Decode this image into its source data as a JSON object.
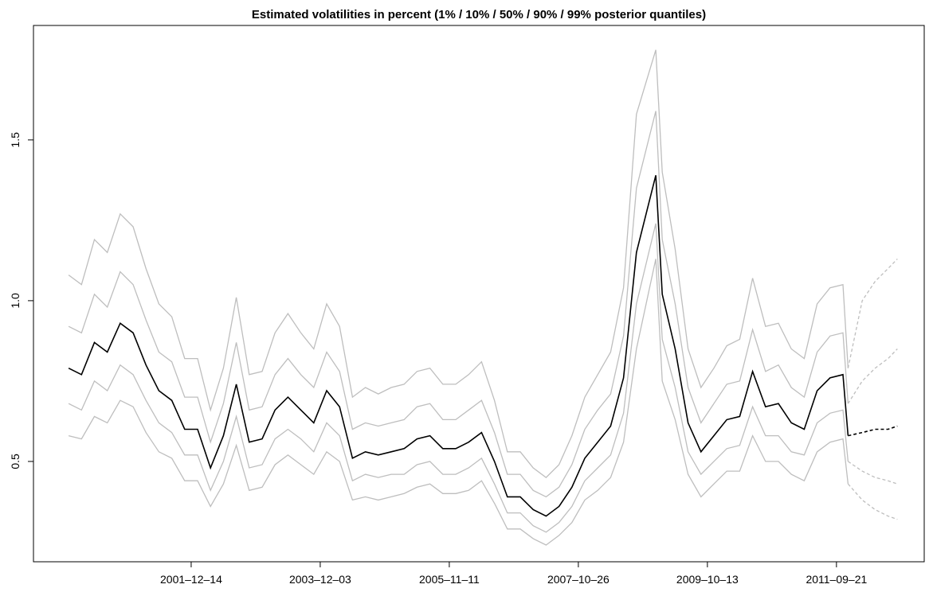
{
  "chart_data": {
    "type": "line",
    "title": "Estimated volatilities in percent (1% / 10% / 50% / 90% / 99% posterior quantiles)",
    "x": [
      25,
      75,
      125,
      175,
      225,
      275,
      325,
      375,
      425,
      475,
      525,
      575,
      625,
      675,
      725,
      775,
      825,
      875,
      925,
      975,
      1025,
      1075,
      1125,
      1175,
      1225,
      1275,
      1325,
      1375,
      1425,
      1475,
      1525,
      1575,
      1625,
      1675,
      1725,
      1775,
      1825,
      1875,
      1925,
      1975,
      2025,
      2075,
      2125,
      2175,
      2225,
      2300,
      2325,
      2375,
      2425,
      2475,
      2525,
      2575,
      2625,
      2675,
      2725,
      2775,
      2825,
      2875,
      2925,
      2975,
      3025,
      3045
    ],
    "xlim": [
      -111,
      3340
    ],
    "xticks": [
      {
        "value": 500,
        "label": "2001–12–14"
      },
      {
        "value": 1000,
        "label": "2003–12–03"
      },
      {
        "value": 1500,
        "label": "2005–11–11"
      },
      {
        "value": 2000,
        "label": "2007–10–26"
      },
      {
        "value": 2500,
        "label": "2009–10–13"
      },
      {
        "value": 3000,
        "label": "2011–09–21"
      }
    ],
    "ylim": [
      0.188,
      1.856
    ],
    "yticks": [
      0.5,
      {
        "value": 1,
        "label": "1.0"
      },
      1.5
    ],
    "series": [
      {
        "color": "#bebebe",
        "values": [
          0.58,
          0.57,
          0.64,
          0.62,
          0.69,
          0.67,
          0.59,
          0.53,
          0.51,
          0.44,
          0.44,
          0.36,
          0.43,
          0.55,
          0.41,
          0.42,
          0.49,
          0.52,
          0.49,
          0.46,
          0.53,
          0.5,
          0.38,
          0.39,
          0.38,
          0.39,
          0.4,
          0.42,
          0.43,
          0.4,
          0.4,
          0.41,
          0.44,
          0.37,
          0.29,
          0.29,
          0.26,
          0.24,
          0.27,
          0.31,
          0.38,
          0.41,
          0.45,
          0.56,
          0.85,
          1.13,
          0.75,
          0.63,
          0.46,
          0.39,
          0.43,
          0.47,
          0.47,
          0.58,
          0.5,
          0.5,
          0.46,
          0.44,
          0.53,
          0.56,
          0.57,
          0.43
        ]
      },
      {
        "color": "#bebebe",
        "values": [
          0.68,
          0.66,
          0.75,
          0.72,
          0.8,
          0.77,
          0.69,
          0.62,
          0.59,
          0.52,
          0.52,
          0.41,
          0.5,
          0.64,
          0.48,
          0.49,
          0.57,
          0.6,
          0.57,
          0.53,
          0.62,
          0.58,
          0.44,
          0.46,
          0.45,
          0.46,
          0.46,
          0.49,
          0.5,
          0.46,
          0.46,
          0.48,
          0.51,
          0.43,
          0.34,
          0.34,
          0.3,
          0.28,
          0.31,
          0.36,
          0.44,
          0.48,
          0.52,
          0.65,
          0.99,
          1.24,
          0.88,
          0.73,
          0.53,
          0.46,
          0.5,
          0.54,
          0.55,
          0.67,
          0.58,
          0.58,
          0.53,
          0.52,
          0.62,
          0.65,
          0.66,
          0.5
        ]
      },
      {
        "color": "#bebebe",
        "values": [
          0.92,
          0.9,
          1.02,
          0.98,
          1.09,
          1.05,
          0.94,
          0.84,
          0.81,
          0.7,
          0.7,
          0.56,
          0.68,
          0.87,
          0.66,
          0.67,
          0.77,
          0.82,
          0.77,
          0.73,
          0.84,
          0.78,
          0.6,
          0.62,
          0.61,
          0.62,
          0.63,
          0.67,
          0.68,
          0.63,
          0.63,
          0.66,
          0.69,
          0.59,
          0.46,
          0.46,
          0.41,
          0.39,
          0.42,
          0.49,
          0.6,
          0.66,
          0.71,
          0.89,
          1.35,
          1.59,
          1.19,
          0.99,
          0.73,
          0.62,
          0.68,
          0.74,
          0.75,
          0.91,
          0.78,
          0.8,
          0.73,
          0.7,
          0.84,
          0.89,
          0.9,
          0.68
        ]
      },
      {
        "color": "#bebebe",
        "values": [
          1.08,
          1.05,
          1.19,
          1.15,
          1.27,
          1.23,
          1.1,
          0.99,
          0.95,
          0.82,
          0.82,
          0.66,
          0.79,
          1.01,
          0.77,
          0.78,
          0.9,
          0.96,
          0.9,
          0.85,
          0.99,
          0.92,
          0.7,
          0.73,
          0.71,
          0.73,
          0.74,
          0.78,
          0.79,
          0.74,
          0.74,
          0.77,
          0.81,
          0.69,
          0.53,
          0.53,
          0.48,
          0.45,
          0.49,
          0.58,
          0.7,
          0.77,
          0.84,
          1.04,
          1.58,
          1.78,
          1.4,
          1.16,
          0.85,
          0.73,
          0.79,
          0.86,
          0.88,
          1.07,
          0.92,
          0.93,
          0.85,
          0.82,
          0.99,
          1.04,
          1.05,
          0.79
        ]
      },
      {
        "color": "#000000",
        "values": [
          0.79,
          0.77,
          0.87,
          0.84,
          0.93,
          0.9,
          0.8,
          0.72,
          0.69,
          0.6,
          0.6,
          0.48,
          0.58,
          0.74,
          0.56,
          0.57,
          0.66,
          0.7,
          0.66,
          0.62,
          0.72,
          0.67,
          0.51,
          0.53,
          0.52,
          0.53,
          0.54,
          0.57,
          0.58,
          0.54,
          0.54,
          0.56,
          0.59,
          0.5,
          0.39,
          0.39,
          0.35,
          0.33,
          0.36,
          0.42,
          0.51,
          0.56,
          0.61,
          0.76,
          1.15,
          1.39,
          1.02,
          0.85,
          0.62,
          0.53,
          0.58,
          0.63,
          0.64,
          0.78,
          0.67,
          0.68,
          0.62,
          0.6,
          0.72,
          0.76,
          0.77,
          0.58
        ]
      },
      {
        "color": "#bebebe",
        "dashed": true,
        "x": [
          3045,
          3100,
          3150,
          3200,
          3236
        ],
        "values": [
          0.43,
          0.38,
          0.35,
          0.33,
          0.32
        ]
      },
      {
        "color": "#bebebe",
        "dashed": true,
        "x": [
          3045,
          3100,
          3150,
          3200,
          3236
        ],
        "values": [
          0.5,
          0.47,
          0.45,
          0.44,
          0.43
        ]
      },
      {
        "color": "#bebebe",
        "dashed": true,
        "x": [
          3045,
          3100,
          3150,
          3200,
          3236
        ],
        "values": [
          0.68,
          0.75,
          0.79,
          0.82,
          0.85
        ]
      },
      {
        "color": "#bebebe",
        "dashed": true,
        "x": [
          3045,
          3100,
          3150,
          3200,
          3236
        ],
        "values": [
          0.79,
          1.0,
          1.06,
          1.1,
          1.13
        ]
      },
      {
        "color": "#000000",
        "dashed": true,
        "x": [
          3045,
          3100,
          3150,
          3200,
          3236
        ],
        "values": [
          0.58,
          0.59,
          0.6,
          0.6,
          0.61
        ]
      }
    ]
  }
}
